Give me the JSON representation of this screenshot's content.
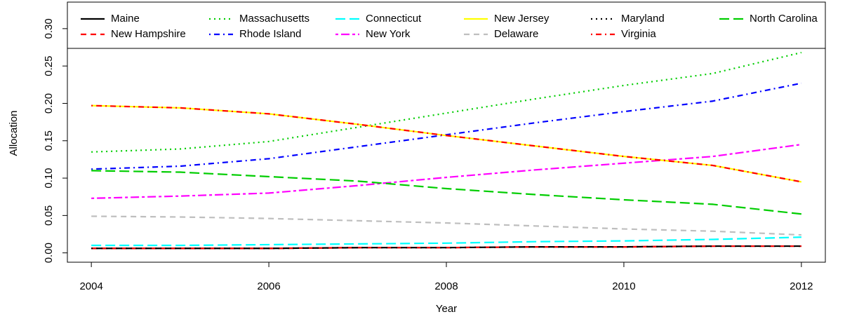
{
  "chart_data": {
    "type": "line",
    "title": null,
    "x_label": "Year",
    "y_label": "Allocation",
    "x": [
      2004,
      2005,
      2006,
      2007,
      2008,
      2009,
      2010,
      2011,
      2012
    ],
    "xlim": [
      2003.73,
      2012.27
    ],
    "xticks": [
      2004,
      2006,
      2008,
      2010,
      2012
    ],
    "ylim": [
      -0.0125,
      0.3355
    ],
    "yticks": [
      {
        "value": 0,
        "label": "0.00"
      },
      {
        "value": 0.05,
        "label": "0.05"
      },
      {
        "value": 0.1,
        "label": "0.10"
      },
      {
        "value": 0.15,
        "label": "0.15"
      },
      {
        "value": 0.2,
        "label": "0.20"
      },
      {
        "value": 0.25,
        "label": "0.25"
      },
      {
        "value": 0.3,
        "label": "0.30"
      }
    ],
    "grid": false,
    "legend": "top",
    "series": [
      {
        "name": "Maine",
        "color": "#000000",
        "dash": "solid",
        "values": [
          0.006,
          0.006,
          0.006,
          0.007,
          0.007,
          0.008,
          0.008,
          0.009,
          0.009
        ]
      },
      {
        "name": "New Hampshire",
        "color": "#ff0000",
        "dash": "dashed",
        "values": [
          0.006,
          0.006,
          0.006,
          0.007,
          0.007,
          0.008,
          0.008,
          0.009,
          0.009
        ]
      },
      {
        "name": "Massachusetts",
        "color": "#00cd00",
        "dash": "dotted",
        "values": [
          0.135,
          0.139,
          0.149,
          0.168,
          0.187,
          0.206,
          0.224,
          0.24,
          0.268
        ]
      },
      {
        "name": "Rhode Island",
        "color": "#0000ff",
        "dash": "dotdash",
        "values": [
          0.112,
          0.116,
          0.126,
          0.142,
          0.158,
          0.174,
          0.189,
          0.203,
          0.227
        ]
      },
      {
        "name": "Connecticut",
        "color": "#00ffff",
        "dash": "longdash",
        "values": [
          0.01,
          0.01,
          0.011,
          0.012,
          0.013,
          0.015,
          0.016,
          0.018,
          0.021
        ]
      },
      {
        "name": "New York",
        "color": "#ff00ff",
        "dash": "twodash",
        "values": [
          0.073,
          0.076,
          0.08,
          0.09,
          0.101,
          0.111,
          0.12,
          0.129,
          0.145
        ]
      },
      {
        "name": "New Jersey",
        "color": "#ffff00",
        "dash": "solid",
        "values": [
          0.197,
          0.194,
          0.186,
          0.172,
          0.157,
          0.143,
          0.129,
          0.117,
          0.095
        ]
      },
      {
        "name": "Delaware",
        "color": "#bebebe",
        "dash": "dashed",
        "values": [
          0.049,
          0.048,
          0.046,
          0.043,
          0.04,
          0.036,
          0.032,
          0.029,
          0.024
        ]
      },
      {
        "name": "Maryland",
        "color": "#000000",
        "dash": "dotted",
        "values": [
          0.006,
          0.006,
          0.006,
          0.007,
          0.007,
          0.008,
          0.008,
          0.009,
          0.009
        ]
      },
      {
        "name": "Virginia",
        "color": "#ff0000",
        "dash": "dotdash",
        "values": [
          0.197,
          0.194,
          0.186,
          0.172,
          0.157,
          0.143,
          0.129,
          0.117,
          0.095
        ]
      },
      {
        "name": "North Carolina",
        "color": "#00cd00",
        "dash": "longdash",
        "values": [
          0.11,
          0.108,
          0.102,
          0.096,
          0.086,
          0.078,
          0.071,
          0.065,
          0.052
        ]
      }
    ]
  }
}
